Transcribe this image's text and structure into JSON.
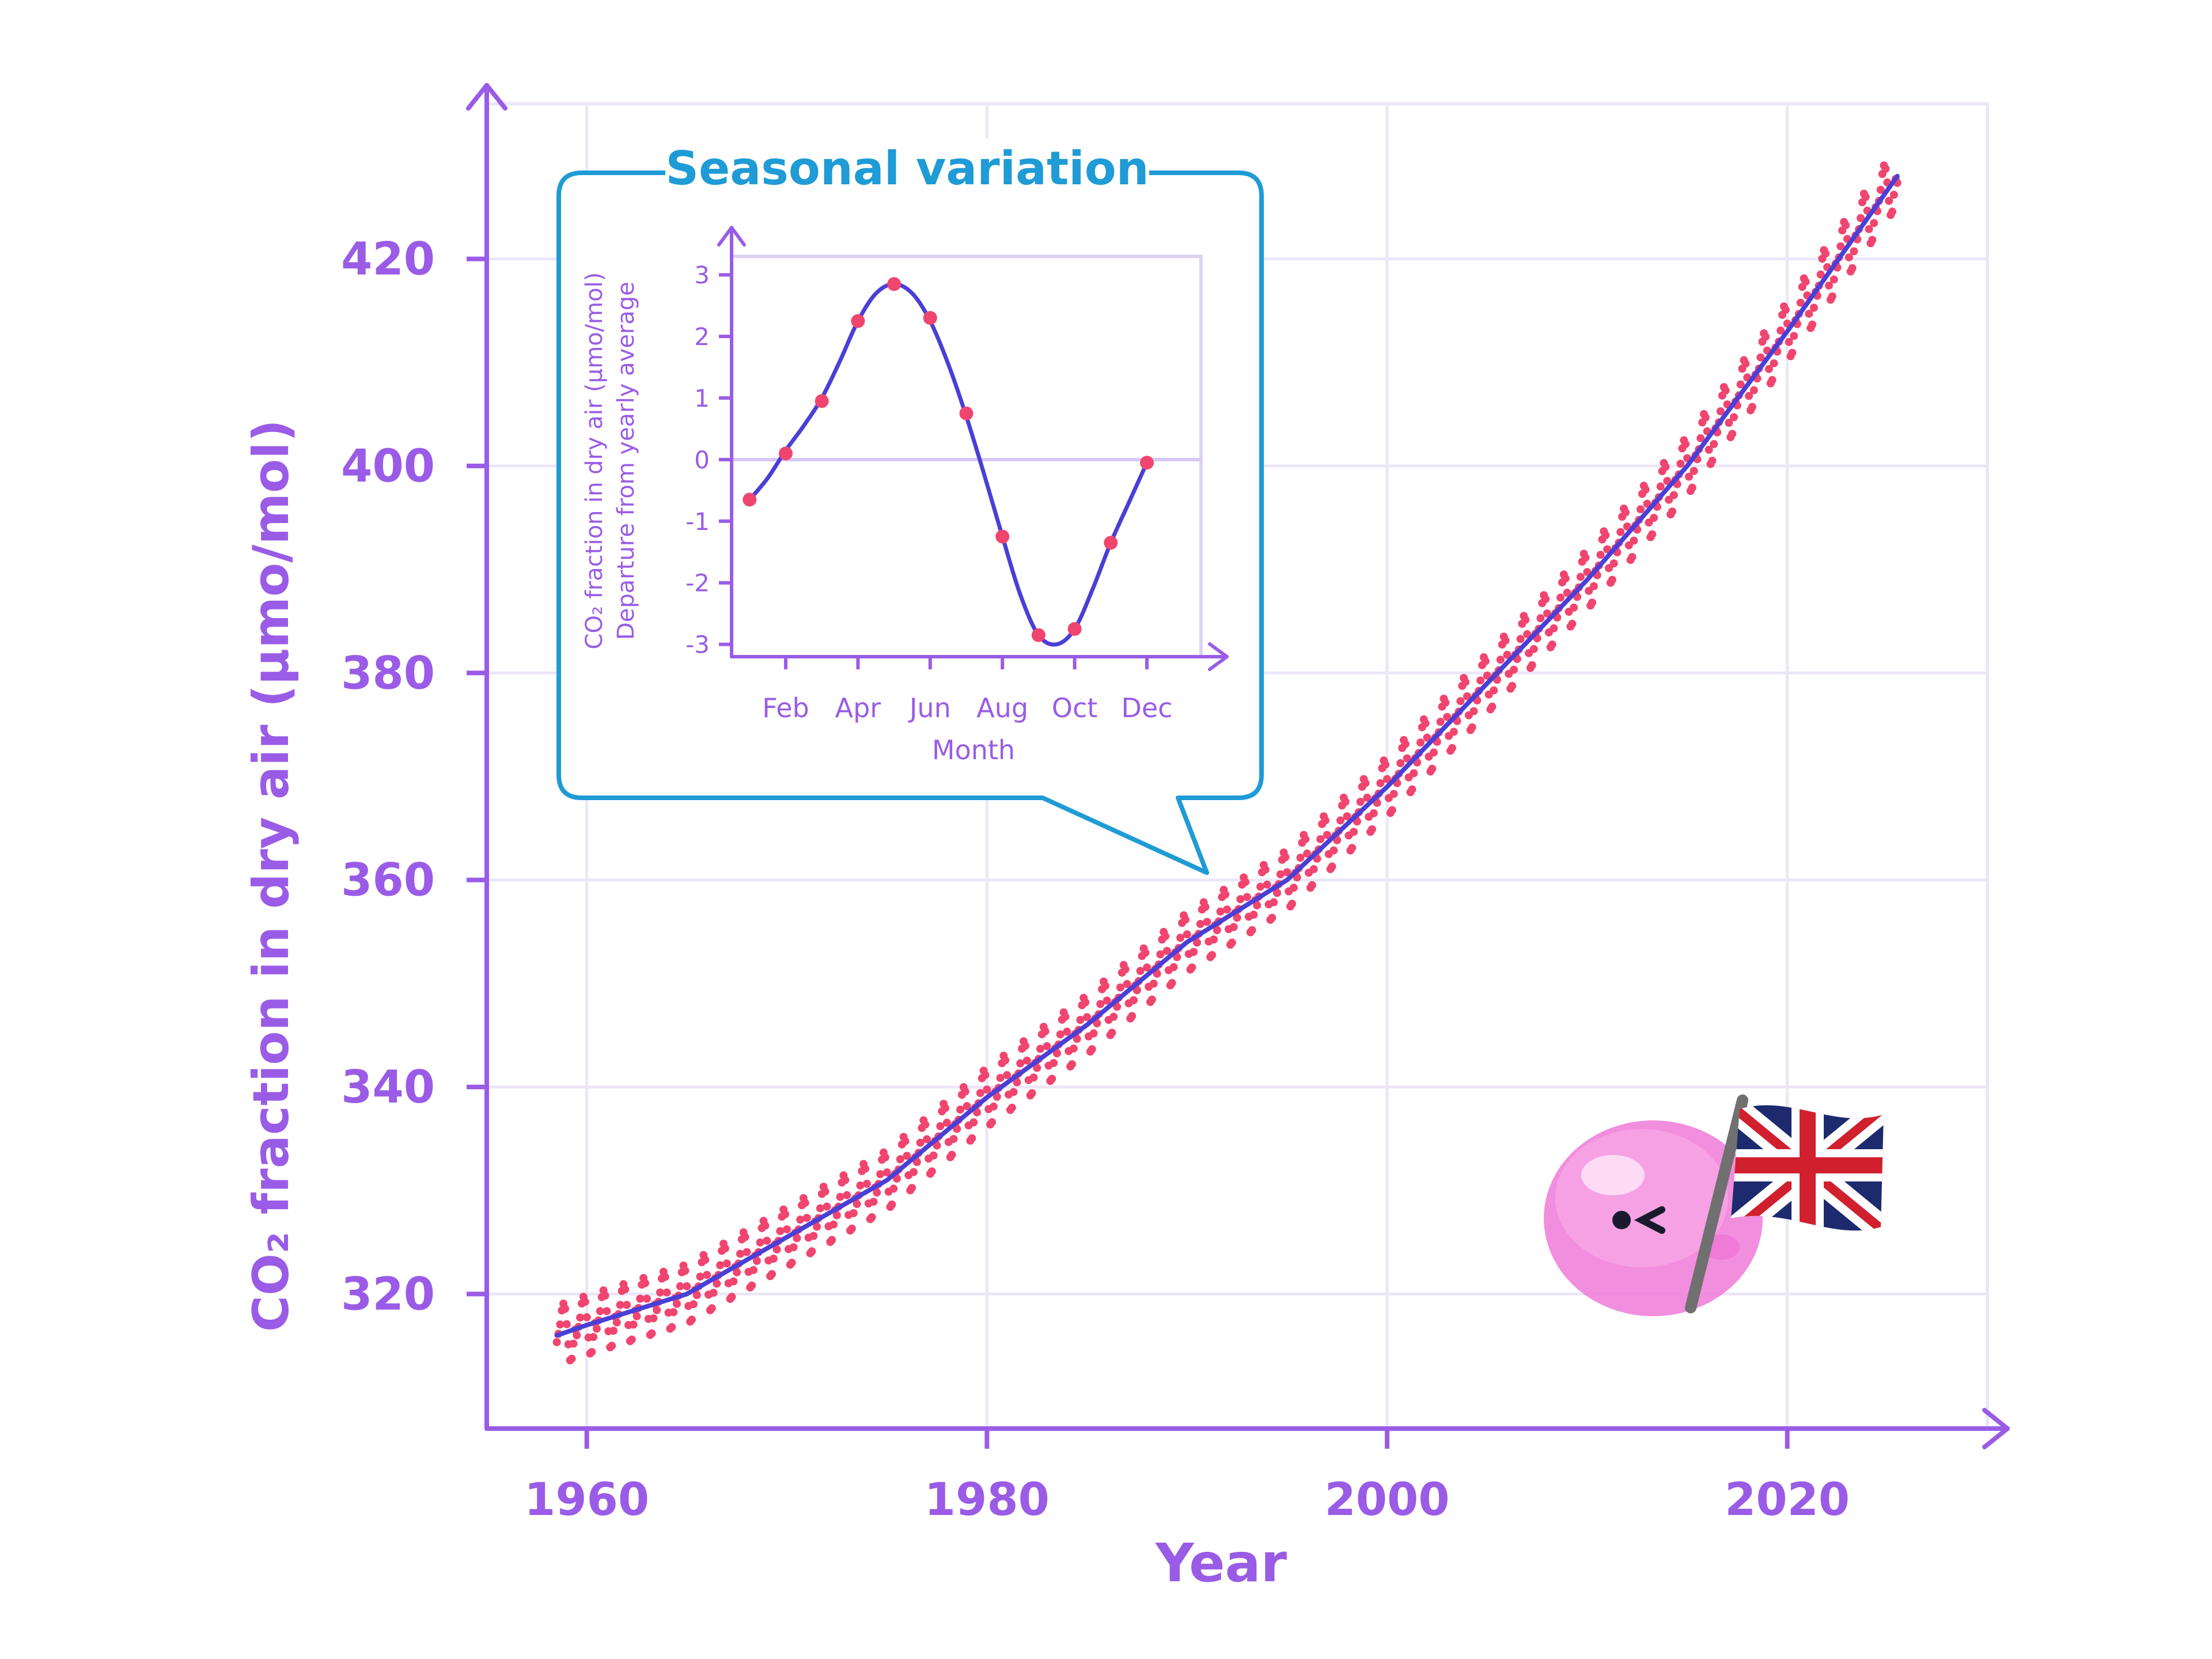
{
  "colors": {
    "axis": "#9a5ce6",
    "grid": "#ece6f8",
    "trend": "#4a3fd6",
    "points": "#f0456f",
    "inset_border": "#1f9bd6",
    "inset_title": "#1f9bd6",
    "creature": "#f07ad8"
  },
  "chart_data": [
    {
      "type": "line",
      "title": "",
      "xlabel": "Year",
      "ylabel": "CO₂ fraction in dry air (μmo/mol)",
      "xlim": [
        1955,
        2030
      ],
      "ylim": [
        307,
        435
      ],
      "x_ticks": [
        1960,
        1980,
        2000,
        2020
      ],
      "y_ticks": [
        320,
        340,
        360,
        380,
        400,
        420
      ],
      "grid": true,
      "legend": "none",
      "series": [
        {
          "kind": "monthly-measurements-dotted",
          "points_per_year": 12,
          "seasonal_amplitude": 3
        },
        {
          "kind": "trend-line",
          "x": [
            1958.5,
            1960,
            1965,
            1970,
            1975,
            1980,
            1985,
            1990,
            1995,
            2000,
            2005,
            2010,
            2015,
            2020,
            2025.5
          ],
          "values": [
            316,
            317,
            320,
            325.5,
            331,
            339,
            346,
            354,
            360,
            369,
            379,
            389,
            400,
            413,
            428
          ]
        }
      ],
      "mascot": {
        "creature_icon": "pink-blob-mascot-icon",
        "flag_icon": "union-jack-flag-icon"
      }
    },
    {
      "type": "line",
      "title": "Seasonal variation",
      "xlabel": "Month",
      "ylabel_line1": "CO₂ fraction in dry air (μmo/mol)",
      "ylabel_line2": "Departure from yearly average",
      "x_tick_labels": [
        "Feb",
        "Apr",
        "Jun",
        "Aug",
        "Oct",
        "Dec"
      ],
      "x_tick_positions": [
        2,
        4,
        6,
        8,
        10,
        12
      ],
      "xlim": [
        0.5,
        13.5
      ],
      "ylim": [
        -3.2,
        3.3
      ],
      "y_ticks": [
        -3,
        -2,
        -1,
        0,
        1,
        2,
        3
      ],
      "grid": true,
      "zero_line": true,
      "points": {
        "x": [
          1,
          2,
          3,
          4,
          5,
          6,
          7,
          8,
          9,
          10,
          11,
          12
        ],
        "values": [
          -0.65,
          0.1,
          0.95,
          2.25,
          2.85,
          2.3,
          0.75,
          -1.25,
          -2.85,
          -2.75,
          -1.35,
          -0.05
        ]
      },
      "curve_x": [
        1,
        1.5,
        2,
        2.5,
        3,
        3.5,
        4,
        4.5,
        5,
        5.5,
        6,
        6.5,
        7,
        7.5,
        8,
        8.5,
        9,
        9.5,
        10,
        10.5,
        11,
        11.5,
        12
      ],
      "curve_values": [
        -0.65,
        -0.3,
        0.15,
        0.55,
        1.0,
        1.6,
        2.25,
        2.7,
        2.85,
        2.7,
        2.25,
        1.55,
        0.7,
        -0.25,
        -1.25,
        -2.2,
        -2.85,
        -3.0,
        -2.75,
        -2.1,
        -1.35,
        -0.7,
        -0.05
      ]
    }
  ]
}
